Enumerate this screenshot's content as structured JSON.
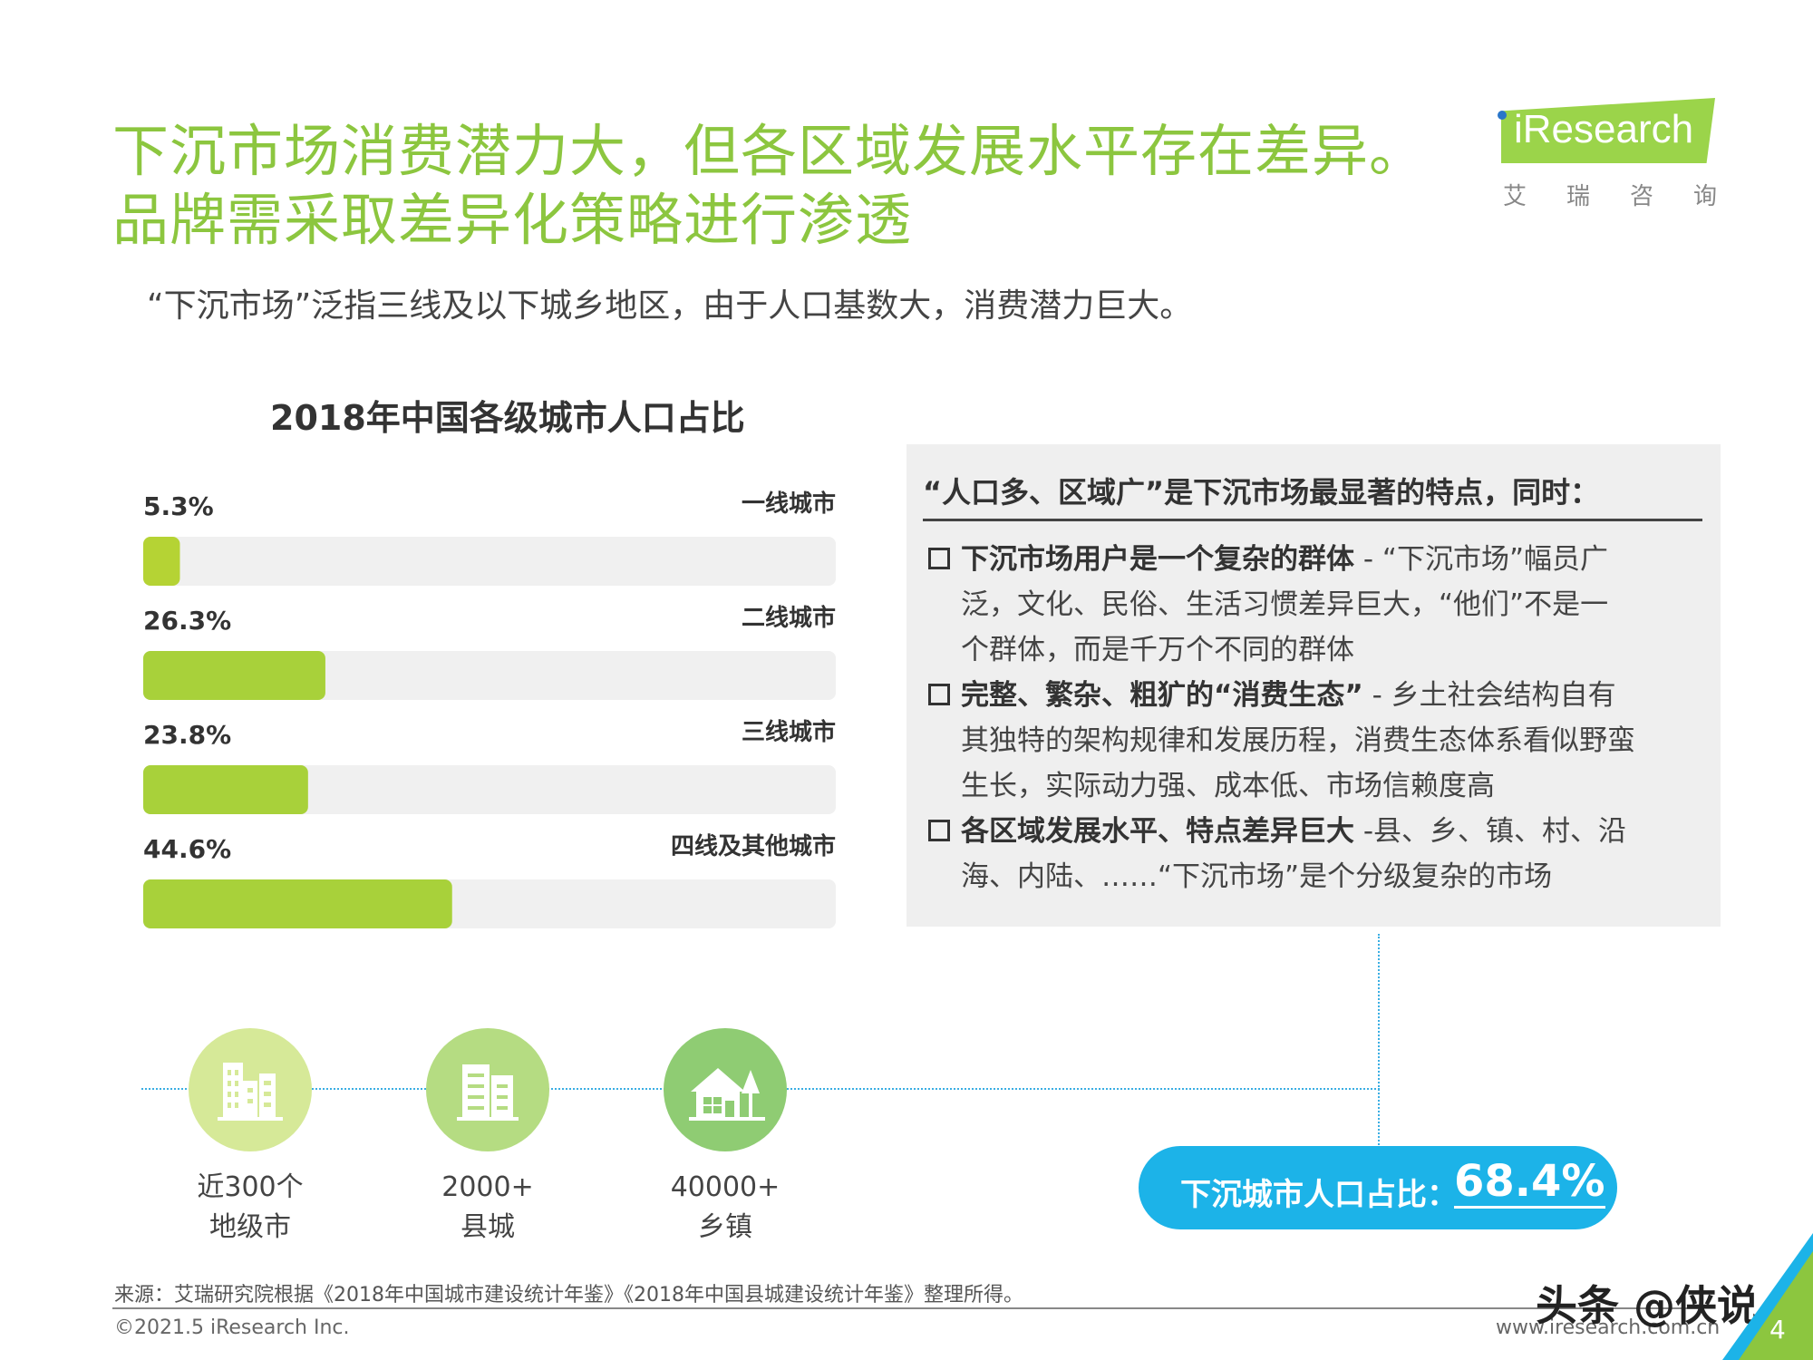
{
  "header": {
    "title_line1": "下沉市场消费潜力大，但各区域发展水平存在差异。",
    "title_line2": "品牌需采取差异化策略进行渗透",
    "subtitle": "“下沉市场”泛指三线及以下城乡地区，由于人口基数大，消费潜力巨大。"
  },
  "logo": {
    "text": "iResearch",
    "cn": "艾瑞咨询",
    "color": "#9bd44a"
  },
  "chart_data": {
    "type": "bar",
    "orientation": "horizontal",
    "title": "2018年中国各级城市人口占比",
    "categories": [
      "一线城市",
      "二线城市",
      "三线城市",
      "四线及其他城市"
    ],
    "values": [
      5.3,
      26.3,
      23.8,
      44.6
    ],
    "value_labels": [
      "5.3%",
      "26.3%",
      "23.8%",
      "44.6%"
    ],
    "xlim": [
      0,
      100
    ],
    "bar_colors": [
      "#b5d334",
      "#a8d13a",
      "#a8d13a",
      "#a8d13a"
    ],
    "track_color": "#f0f0f0",
    "grid": false
  },
  "panel": {
    "heading": "“人口多、区域广”是下沉市场最显著的特点，同时：",
    "items": [
      {
        "bold": "下沉市场用户是一个复杂的群体",
        "text1": " - “下沉市场”幅员广",
        "text2": "泛，文化、民俗、生活习惯差异巨大，“他们”不是一",
        "text3": "个群体，而是千万个不同的群体"
      },
      {
        "bold": "完整、繁杂、粗犷的“消费生态”",
        "text1": " - 乡土社会结构自有",
        "text2": "其独特的架构规律和发展历程，消费生态体系看似野蛮",
        "text3": "生长，实际动力强、成本低、市场信赖度高"
      },
      {
        "bold": "各区域发展水平、特点差异巨大",
        "text1": " -县、乡、镇、村、沿",
        "text2": "海、内陆、……“下沉市场”是个分级复杂的市场",
        "text3": ""
      }
    ]
  },
  "stats": [
    {
      "icon": "city-buildings-icon",
      "line1": "近300个",
      "line2": "地级市"
    },
    {
      "icon": "office-building-icon",
      "line1": "2000+",
      "line2": "县城"
    },
    {
      "icon": "house-tree-icon",
      "line1": "40000+",
      "line2": "乡镇"
    }
  ],
  "highlight": {
    "label": "下沉城市人口占比：",
    "value": "68.4%",
    "color": "#1cb3e8"
  },
  "footer": {
    "source": "来源：艾瑞研究院根据《2018年中国城市建设统计年鉴》《2018年中国县城建设统计年鉴》整理所得。",
    "copyright": "©2021.5 iResearch Inc.",
    "website": "www.iresearch.com.cn",
    "page": "4",
    "watermark": "头条 @侠说"
  }
}
